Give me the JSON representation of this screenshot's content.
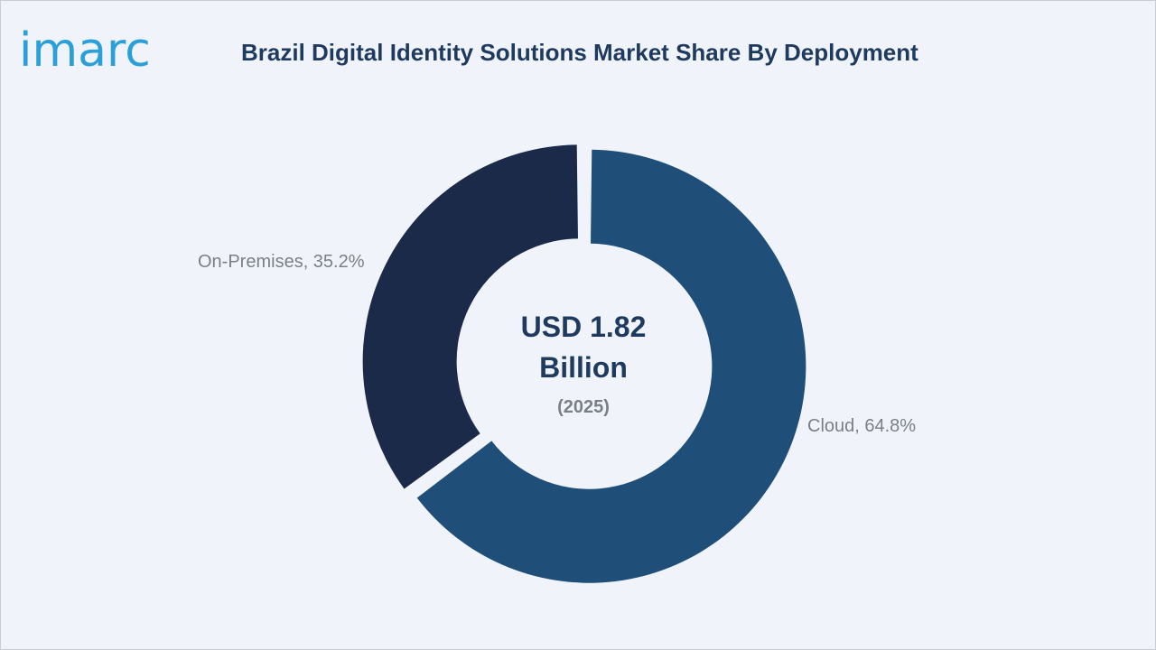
{
  "header": {
    "logo_text": "imarc",
    "title": "Brazil Digital Identity Solutions Market Share By Deployment"
  },
  "colors": {
    "background": "#f0f4fa",
    "title": "#1f3a5f",
    "logo": "#2a9fd8",
    "cloud": "#1f4e79",
    "on_premises": "#1b2a49",
    "label": "#7a7f87"
  },
  "chart_data": {
    "type": "pie",
    "donut": true,
    "title": "Brazil Digital Identity Solutions Market Share By Deployment",
    "slices": [
      {
        "label": "Cloud",
        "value": 64.8,
        "display": "Cloud, 64.8%",
        "color": "#1f4e79"
      },
      {
        "label": "On-Premises",
        "value": 35.2,
        "display": "On-Premises, 35.2%",
        "color": "#1b2a49"
      }
    ],
    "center": {
      "line1": "USD 1.82",
      "line2": "Billion",
      "line3": "(2025)"
    },
    "legend": "none"
  }
}
